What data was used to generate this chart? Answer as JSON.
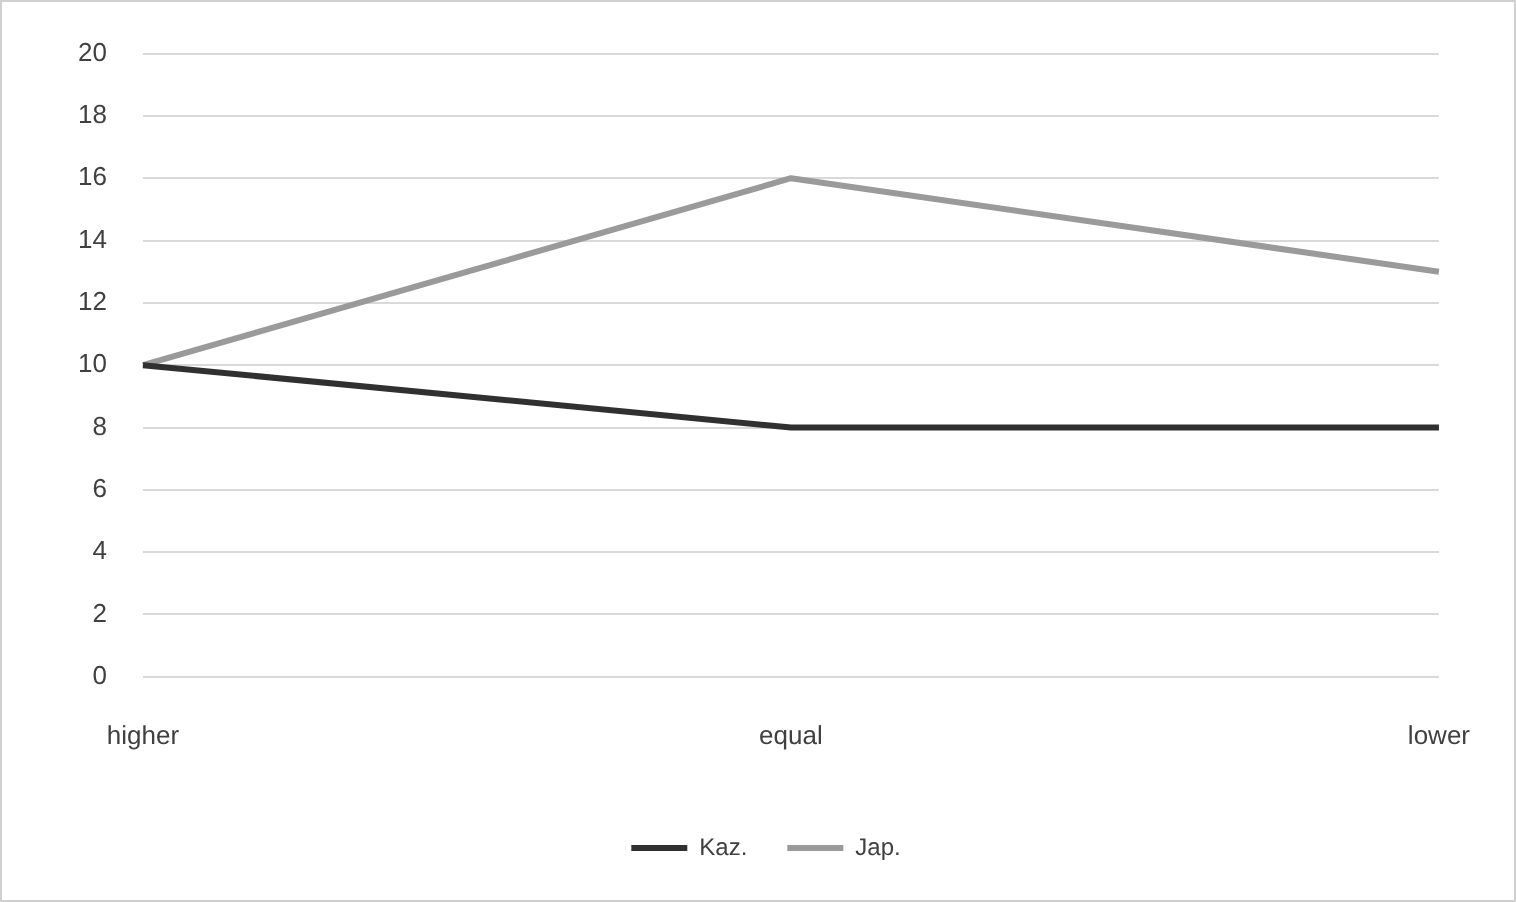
{
  "chart_data": {
    "type": "line",
    "categories": [
      "higher",
      "equal",
      "lower"
    ],
    "series": [
      {
        "name": "Kaz.",
        "color": "#303030",
        "values": [
          10,
          8,
          8
        ]
      },
      {
        "name": "Jap.",
        "color": "#9a9a9a",
        "values": [
          10,
          16,
          13
        ]
      }
    ],
    "ylim": [
      0,
      20
    ],
    "yticks": [
      0,
      2,
      4,
      6,
      8,
      10,
      12,
      14,
      16,
      18,
      20
    ],
    "grid": "y",
    "legend": "bottom",
    "marker": "none"
  }
}
